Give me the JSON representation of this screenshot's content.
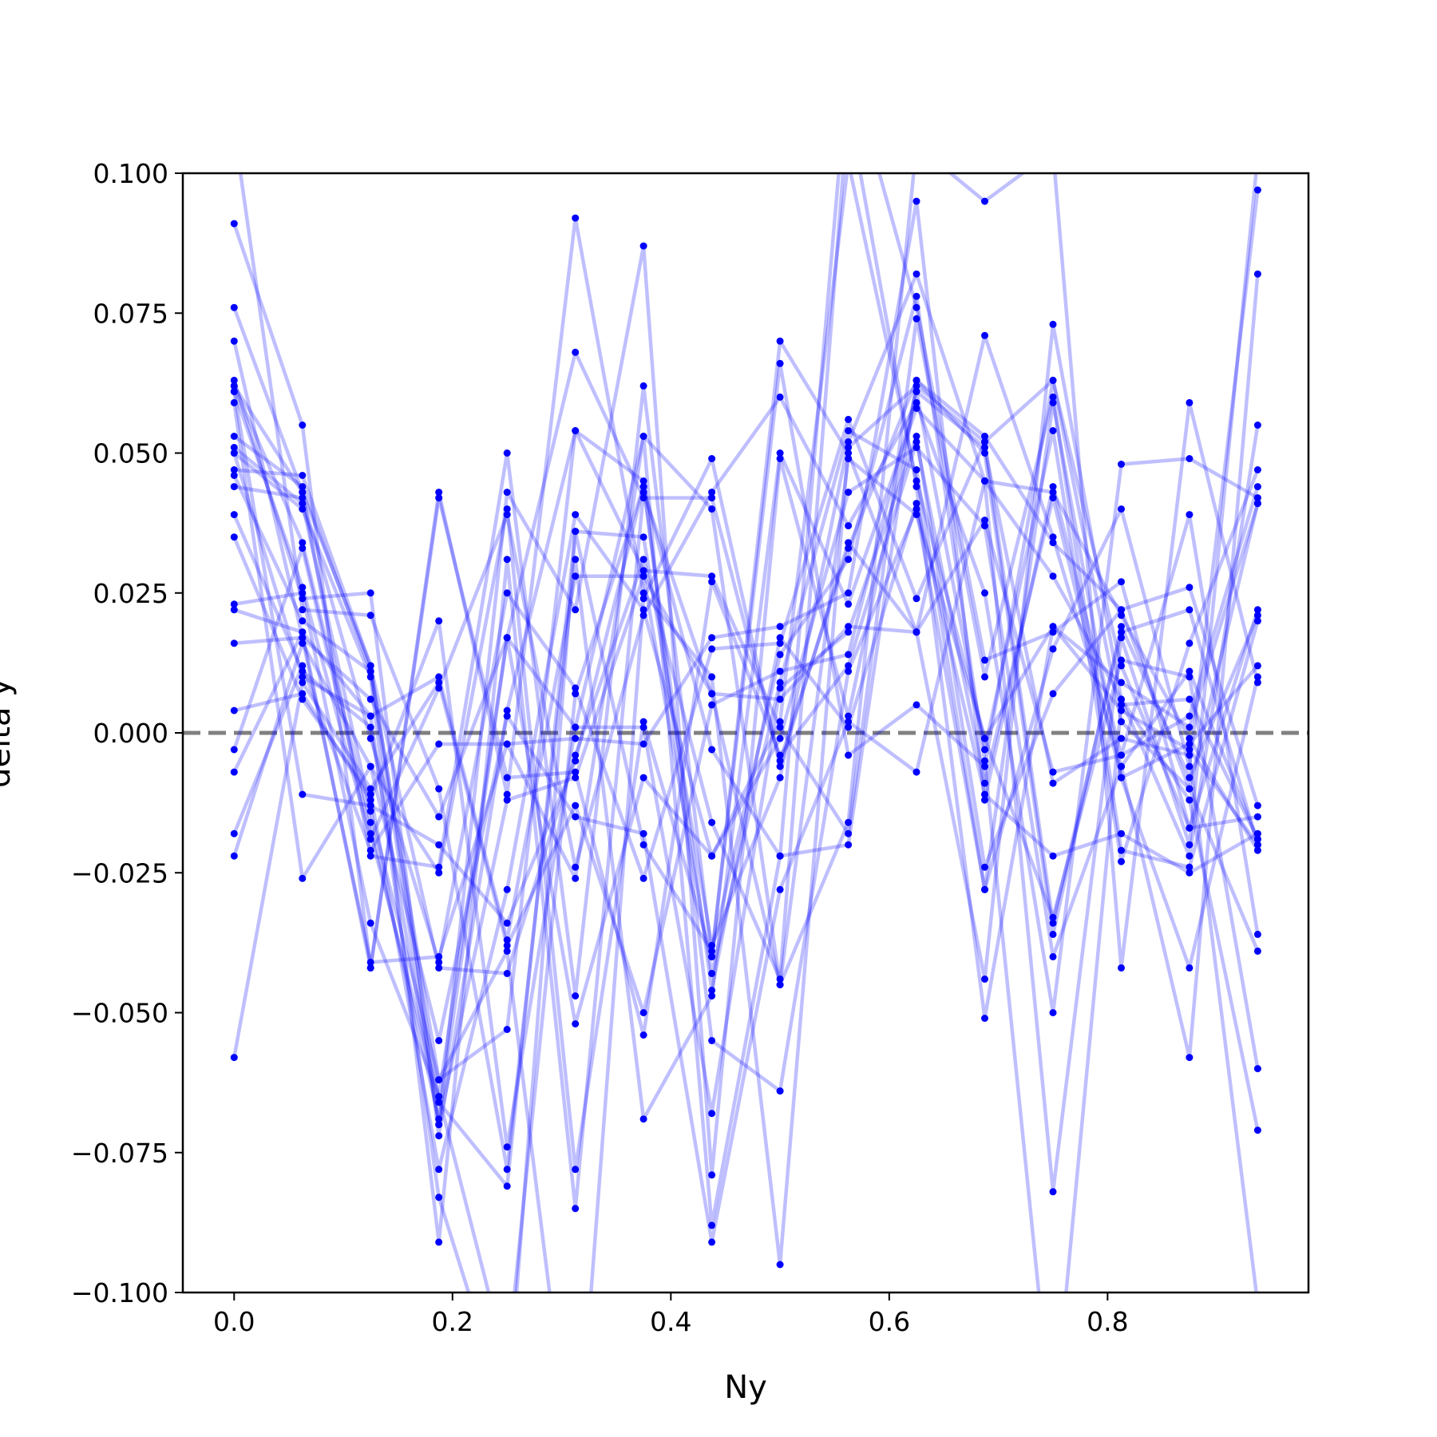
{
  "chart_data": {
    "type": "line",
    "title": "",
    "xlabel": "Ny",
    "ylabel": "delta y",
    "xlim": [
      -0.047,
      0.984
    ],
    "ylim": [
      -0.1,
      0.1
    ],
    "xticks": [
      0.0,
      0.2,
      0.4,
      0.6,
      0.8
    ],
    "xtick_labels": [
      "0.0",
      "0.2",
      "0.4",
      "0.6",
      "0.8"
    ],
    "yticks": [
      -0.1,
      -0.075,
      -0.05,
      -0.025,
      0.0,
      0.025,
      0.05,
      0.075,
      0.1
    ],
    "ytick_labels": [
      "−0.100",
      "−0.075",
      "−0.050",
      "−0.025",
      "0.000",
      "0.025",
      "0.050",
      "0.075",
      "0.100"
    ],
    "grid": false,
    "line_color": "#0000ff",
    "line_alpha": 0.25,
    "point_color": "#0000ff",
    "reference_line": {
      "y": 0.0,
      "color": "#808080",
      "style": "dashed"
    },
    "x": [
      0.0,
      0.0625,
      0.125,
      0.1875,
      0.25,
      0.3125,
      0.375,
      0.4375,
      0.5,
      0.5625,
      0.625,
      0.6875,
      0.75,
      0.8125,
      0.875,
      0.9375
    ],
    "series": [
      {
        "values": [
          0.062,
          0.043,
          0.012,
          -0.066,
          -0.081,
          0.036,
          0.035,
          -0.038,
          -0.008,
          0.052,
          0.082,
          0.045,
          0.043,
          0.021,
          -0.001,
          -0.021
        ]
      },
      {
        "values": [
          0.091,
          0.055,
          -0.042,
          0.043,
          -0.011,
          0.092,
          0.025,
          0.01,
          -0.095,
          0.051,
          0.062,
          0.052,
          -0.034,
          0.018,
          0.022,
          -0.02
        ]
      },
      {
        "values": [
          0.076,
          0.043,
          -0.022,
          -0.024,
          0.05,
          -0.047,
          0.062,
          -0.04,
          0.07,
          0.05,
          0.018,
          -0.044,
          0.073,
          0.006,
          -0.022,
          0.055
        ]
      },
      {
        "values": [
          0.07,
          0.017,
          -0.041,
          -0.04,
          -0.002,
          -0.001,
          -0.002,
          0.017,
          0.019,
          0.025,
          0.095,
          -0.012,
          0.044,
          -0.004,
          0.039,
          -0.036
        ]
      },
      {
        "values": [
          0.063,
          0.024,
          0.025,
          -0.072,
          0.004,
          0.054,
          0.029,
          0.028,
          0.001,
          -0.018,
          0.074,
          0.01,
          0.06,
          -0.021,
          -0.024,
          0.02
        ]
      },
      {
        "values": [
          0.061,
          0.026,
          -0.019,
          0.008,
          0.039,
          -0.024,
          0.021,
          0.043,
          0.06,
          0.037,
          0.059,
          0.025,
          -0.05,
          0.048,
          0.049,
          0.042
        ]
      },
      {
        "values": [
          0.051,
          0.041,
          -0.014,
          -0.062,
          -0.053,
          0.054,
          0.045,
          -0.055,
          -0.064,
          0.011,
          0.04,
          -0.028,
          0.015,
          0.04,
          -0.006,
          0.097
        ]
      },
      {
        "values": [
          0.05,
          0.04,
          0.01,
          -0.091,
          0.031,
          -0.085,
          0.043,
          0.007,
          -0.045,
          -0.016,
          0.105,
          0.095,
          0.104,
          -0.042,
          0.059,
          0.009
        ]
      },
      {
        "values": [
          0.044,
          0.042,
          -0.001,
          -0.041,
          0.025,
          0.008,
          -0.026,
          0.015,
          0.016,
          0.056,
          0.024,
          0.052,
          0.063,
          0.012,
          -0.017,
          -0.015
        ]
      },
      {
        "values": [
          0.039,
          0.011,
          0.001,
          -0.07,
          0.043,
          0.022,
          0.087,
          -0.079,
          0.049,
          0.003,
          0.061,
          -0.003,
          0.054,
          -0.023,
          0.016,
          0.047
        ]
      },
      {
        "values": [
          0.035,
          0.006,
          -0.011,
          -0.078,
          -0.028,
          0.039,
          0.022,
          -0.022,
          -0.001,
          0.043,
          0.051,
          0.037,
          -0.04,
          -0.006,
          0.011,
          -0.019
        ]
      },
      {
        "values": [
          0.023,
          0.025,
          -0.034,
          -0.065,
          0.017,
          0.068,
          0.042,
          0.042,
          -0.005,
          0.033,
          0.063,
          0.05,
          -0.036,
          0.019,
          -0.008,
          0.021
        ]
      },
      {
        "values": [
          0.022,
          0.018,
          0.003,
          0.01,
          -0.037,
          0.028,
          0.028,
          0.007,
          0.006,
          0.019,
          0.018,
          0.071,
          0.035,
          -0.006,
          -0.058,
          0.082
        ]
      },
      {
        "values": [
          0.016,
          0.017,
          0.006,
          -0.015,
          0.017,
          0.001,
          0.001,
          -0.068,
          0.008,
          0.018,
          0.053,
          -0.024,
          0.007,
          0.022,
          0.026,
          -0.013
        ]
      },
      {
        "values": [
          0.004,
          0.007,
          -0.012,
          0.02,
          -0.074,
          0.001,
          0.053,
          0.04,
          -0.045,
          0.049,
          0.039,
          -0.001,
          -0.033,
          0.013,
          0.01,
          -0.06
        ]
      },
      {
        "values": [
          -0.003,
          0.033,
          -0.018,
          -0.065,
          -0.113,
          0.007,
          0.044,
          -0.046,
          0.017,
          0.001,
          0.041,
          -0.011,
          -0.022,
          -0.018,
          -0.025,
          -0.018
        ]
      },
      {
        "values": [
          -0.007,
          0.018,
          -0.042,
          0.042,
          -0.008,
          -0.007,
          -0.054,
          0.027,
          -0.004,
          0.012,
          0.052,
          -0.009,
          0.042,
          -0.008,
          -0.042,
          0.01
        ]
      },
      {
        "values": [
          -0.018,
          0.012,
          -0.021,
          -0.002,
          -0.002,
          -0.026,
          0.053,
          -0.088,
          -0.022,
          -0.02,
          0.063,
          0.053,
          0.034,
          0.022,
          -0.01,
          -0.039
        ]
      },
      {
        "values": [
          -0.022,
          0.016,
          -0.006,
          -0.055,
          0.003,
          -0.015,
          -0.018,
          -0.091,
          -0.028,
          0.002,
          -0.007,
          0.045,
          0.028,
          0.006,
          -0.012,
          -0.071
        ]
      },
      {
        "values": [
          -0.058,
          0.009,
          -0.01,
          0.009,
          -0.038,
          -0.013,
          -0.05,
          0.005,
          0.011,
          0.014,
          0.061,
          0.051,
          -0.009,
          -0.001,
          -0.004,
          -0.102
        ]
      },
      {
        "values": [
          0.062,
          0.034,
          -0.016,
          -0.069,
          0.017,
          -0.052,
          -0.008,
          -0.022,
          0.002,
          0.102,
          0.045,
          -0.001,
          0.019,
          0.009,
          0.001,
          0.041
        ]
      },
      {
        "values": [
          0.061,
          -0.011,
          -0.013,
          -0.02,
          -0.034,
          -0.005,
          0.044,
          -0.003,
          -0.022,
          0.12,
          0.076,
          0.013,
          0.018,
          0.027,
          -0.017,
          0.022
        ]
      },
      {
        "values": [
          0.05,
          0.01,
          0.003,
          -0.083,
          -0.122,
          0.036,
          -0.02,
          -0.039,
          0.014,
          0.031,
          0.078,
          -0.005,
          -0.125,
          0.005,
          0.006,
          -0.019
        ]
      },
      {
        "values": [
          0.108,
          0.022,
          0.021,
          -0.01,
          -0.078,
          0.031,
          -0.069,
          -0.047,
          0.05,
          0.023,
          0.058,
          0.045,
          -0.082,
          0.017,
          -0.02,
          0.103
        ]
      },
      {
        "values": [
          0.047,
          0.046,
          0.012,
          -0.042,
          -0.043,
          -0.004,
          0.031,
          -0.016,
          -0.044,
          0.112,
          0.044,
          -0.051,
          0.019,
          0.004,
          -0.003,
          -0.02
        ]
      },
      {
        "values": [
          0.059,
          -0.026,
          -0.006,
          -0.025,
          0.04,
          -0.078,
          0.002,
          -0.04,
          0.066,
          -0.004,
          0.005,
          -0.006,
          0.063,
          0.002,
          -0.01,
          0.041
        ]
      },
      {
        "values": [
          0.053,
          0.044,
          0.011,
          -0.07,
          -0.012,
          -0.008,
          0.028,
          -0.043,
          0.009,
          0.054,
          0.047,
          -0.028,
          0.059,
          -0.008,
          -0.002,
          0.012
        ]
      },
      {
        "values": [
          0.046,
          0.02,
          0.011,
          -0.062,
          -0.039,
          -0.137,
          0.024,
          0.049,
          -0.006,
          0.034,
          0.018,
          0.038,
          -0.007,
          -0.004,
          0.003,
          0.044
        ]
      }
    ]
  }
}
